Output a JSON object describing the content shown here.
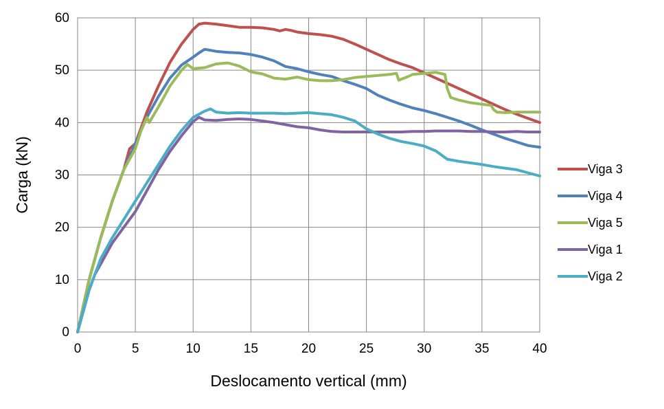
{
  "chart_data": {
    "type": "line",
    "title": "",
    "xlabel": "Deslocamento vertical (mm)",
    "ylabel": "Carga (kN)",
    "xlim": [
      0,
      40
    ],
    "ylim": [
      0,
      60
    ],
    "x_ticks": [
      "0",
      "5",
      "10",
      "15",
      "20",
      "25",
      "30",
      "35",
      "40"
    ],
    "y_ticks": [
      "0",
      "10",
      "20",
      "30",
      "40",
      "50",
      "60"
    ],
    "grid": true,
    "legend_position": "right",
    "series": [
      {
        "name": "Viga 3",
        "color": "#C0504D",
        "x": [
          0,
          1,
          2,
          3,
          4,
          4.5,
          5,
          6,
          7,
          8,
          9,
          10,
          10.5,
          11,
          12,
          13,
          14,
          15,
          16,
          17,
          17.5,
          18,
          18.5,
          19,
          20,
          21,
          22,
          23,
          24,
          25,
          26,
          27,
          28,
          29,
          30,
          31,
          32,
          33,
          34,
          35,
          36,
          37,
          38,
          39,
          40
        ],
        "y": [
          0,
          10,
          18,
          25,
          31,
          35,
          36,
          42,
          47,
          51.5,
          55,
          57.8,
          58.8,
          59,
          58.8,
          58.5,
          58.2,
          58.2,
          58.1,
          57.8,
          57.5,
          57.8,
          57.6,
          57.3,
          57.0,
          56.8,
          56.5,
          55.9,
          55.0,
          54.0,
          53.0,
          52.0,
          51.2,
          50.5,
          49.5,
          48.5,
          47.5,
          46.5,
          45.5,
          44.5,
          43.5,
          42.5,
          41.6,
          40.8,
          40.0
        ]
      },
      {
        "name": "Viga 4",
        "color": "#4F81BD",
        "x": [
          0,
          1,
          2,
          3,
          4,
          5,
          6,
          7,
          8,
          9,
          10,
          10.5,
          11,
          12,
          13,
          14,
          15,
          16,
          17,
          18,
          19,
          20,
          21,
          22,
          23,
          24,
          25,
          26,
          27,
          28,
          29,
          30,
          31,
          32,
          33,
          34,
          35,
          36,
          37,
          38,
          39,
          40
        ],
        "y": [
          0,
          10,
          18,
          25,
          31,
          36,
          41,
          45,
          48.5,
          51,
          52.5,
          53.3,
          54,
          53.6,
          53.4,
          53.3,
          53.0,
          52.5,
          51.8,
          50.7,
          50.3,
          49.7,
          49.2,
          48.8,
          48.0,
          47.3,
          46.5,
          45.2,
          44.3,
          43.5,
          42.8,
          42.3,
          41.7,
          41.0,
          40.3,
          39.5,
          38.6,
          37.8,
          37.0,
          36.3,
          35.6,
          35.3
        ]
      },
      {
        "name": "Viga 5",
        "color": "#9BBB59",
        "x": [
          0,
          1,
          2,
          3,
          4,
          5,
          5.5,
          6,
          6.2,
          7,
          8,
          9,
          9.5,
          10,
          11,
          12,
          13,
          14,
          15,
          16,
          17,
          18,
          19,
          20,
          21,
          22,
          23,
          24,
          25,
          26,
          27,
          27.6,
          27.8,
          28.5,
          29,
          30,
          31,
          31.8,
          32,
          32.3,
          33,
          34,
          35,
          35.8,
          36,
          36.3,
          37,
          38,
          39,
          40
        ],
        "y": [
          0,
          10,
          18,
          25,
          31,
          35,
          38.5,
          41,
          40,
          43,
          47,
          50,
          51.1,
          50.3,
          50.5,
          51.2,
          51.4,
          50.8,
          49.7,
          49.3,
          48.5,
          48.3,
          48.7,
          48.2,
          48.0,
          48.0,
          48.2,
          48.6,
          48.8,
          49.0,
          49.2,
          49.4,
          48.1,
          48.7,
          49.2,
          49.4,
          49.6,
          49.2,
          46.5,
          44.8,
          44.3,
          43.8,
          43.5,
          43.3,
          42.5,
          42.0,
          41.9,
          42.0,
          42.0,
          42.0
        ]
      },
      {
        "name": "Viga 1",
        "color": "#8064A2",
        "x": [
          0,
          1,
          1.5,
          2,
          3,
          4,
          5,
          6,
          7,
          8,
          9,
          10,
          10.5,
          11,
          12,
          13,
          14,
          15,
          16,
          17,
          18,
          19,
          20,
          21,
          22,
          23,
          24,
          25,
          26,
          27,
          28,
          29,
          30,
          31,
          32,
          33,
          34,
          35,
          36,
          37,
          38,
          39,
          40
        ],
        "y": [
          0,
          8,
          11,
          13,
          17,
          20,
          23,
          27,
          31,
          34.5,
          37.5,
          40.2,
          41.0,
          40.5,
          40.4,
          40.6,
          40.7,
          40.6,
          40.3,
          40.0,
          39.6,
          39.2,
          39.0,
          38.6,
          38.3,
          38.2,
          38.2,
          38.2,
          38.2,
          38.2,
          38.2,
          38.3,
          38.3,
          38.4,
          38.4,
          38.4,
          38.3,
          38.3,
          38.2,
          38.2,
          38.3,
          38.2,
          38.2
        ]
      },
      {
        "name": "Viga 2",
        "color": "#4BACC6",
        "x": [
          0,
          1,
          1.5,
          2,
          3,
          4,
          5,
          6,
          7,
          8,
          9,
          10,
          11,
          11.5,
          12,
          13,
          14,
          15,
          16,
          17,
          18,
          19,
          20,
          21,
          22,
          23,
          24,
          25,
          26,
          27,
          28,
          29,
          30,
          31,
          32,
          33,
          34,
          35,
          36,
          37,
          38,
          39,
          40
        ],
        "y": [
          0,
          8,
          11,
          14,
          18,
          21.5,
          25,
          28.5,
          32,
          35.5,
          38.5,
          41,
          42.2,
          42.6,
          42.0,
          41.8,
          41.9,
          41.8,
          41.8,
          41.8,
          41.7,
          41.8,
          41.9,
          41.7,
          41.5,
          41.0,
          40.3,
          38.8,
          37.8,
          37.0,
          36.4,
          36.0,
          35.5,
          34.6,
          33.0,
          32.6,
          32.3,
          32.0,
          31.6,
          31.3,
          31.0,
          30.4,
          29.8
        ]
      }
    ]
  }
}
